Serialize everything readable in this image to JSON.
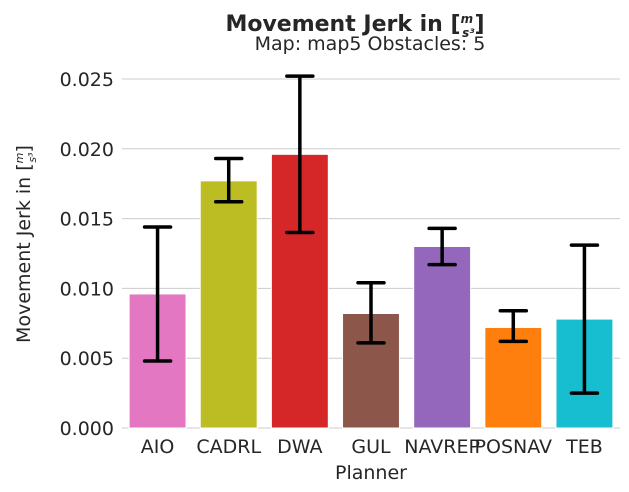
{
  "chart_data": {
    "type": "bar",
    "title": "Movement Jerk in [",
    "title_unit": {
      "num": "m",
      "den": "s³"
    },
    "title_close": "]",
    "subtitle": "Map: map5 Obstacles: 5",
    "xlabel": "Planner",
    "ylabel": "Movement Jerk in [",
    "ylabel_unit": {
      "num": "m",
      "den": "s³"
    },
    "ylabel_close": "]",
    "ylim": [
      0,
      0.0265
    ],
    "yticks": [
      0.0,
      0.005,
      0.01,
      0.015,
      0.02,
      0.025
    ],
    "ytick_labels": [
      "0.000",
      "0.005",
      "0.010",
      "0.015",
      "0.020",
      "0.025"
    ],
    "grid": true,
    "categories": [
      "AIO",
      "CADRL",
      "DWA",
      "GUL",
      "NAVREP",
      "POSNAV",
      "TEB"
    ],
    "values": [
      0.0096,
      0.0177,
      0.0196,
      0.0082,
      0.013,
      0.0072,
      0.0078
    ],
    "error_low": [
      0.0048,
      0.0162,
      0.014,
      0.0061,
      0.0117,
      0.0062,
      0.0025
    ],
    "error_high": [
      0.0144,
      0.0193,
      0.0252,
      0.0104,
      0.0143,
      0.0084,
      0.0131
    ],
    "colors": [
      "#e377c2",
      "#bcbd22",
      "#d62728",
      "#8c564b",
      "#9467bd",
      "#ff7f0e",
      "#17becf"
    ]
  }
}
